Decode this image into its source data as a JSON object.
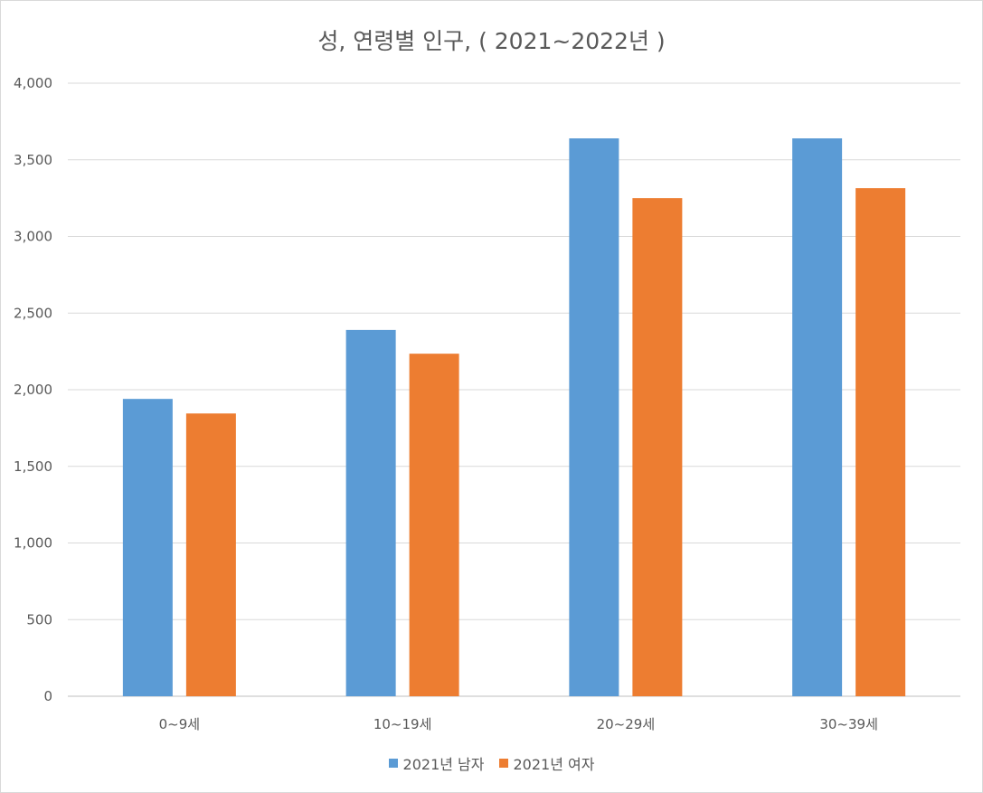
{
  "chart_data": {
    "type": "bar",
    "title": "성, 연령별 인구, ( 2021~2022년 )",
    "categories": [
      "0~9세",
      "10~19세",
      "20~29세",
      "30~39세"
    ],
    "series": [
      {
        "name": "2021년 남자",
        "color": "#5b9bd5",
        "values": [
          1940,
          2390,
          3640,
          3640
        ]
      },
      {
        "name": "2021년 여자",
        "color": "#ed7d31",
        "values": [
          1845,
          2235,
          3250,
          3315
        ]
      }
    ],
    "ylim": [
      0,
      4000
    ],
    "yticks": [
      0,
      500,
      1000,
      1500,
      2000,
      2500,
      3000,
      3500,
      4000
    ],
    "ytick_labels": [
      "0",
      "500",
      "1,000",
      "1,500",
      "2,000",
      "2,500",
      "3,000",
      "3,500",
      "4,000"
    ],
    "grid": true,
    "legend_position": "bottom"
  }
}
